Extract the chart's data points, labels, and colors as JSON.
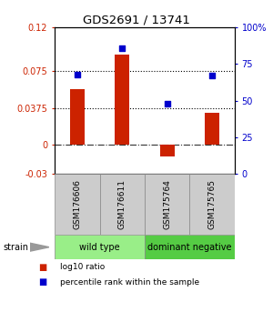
{
  "title": "GDS2691 / 13741",
  "samples": [
    "GSM176606",
    "GSM176611",
    "GSM175764",
    "GSM175765"
  ],
  "log10_ratio": [
    0.057,
    0.092,
    -0.012,
    0.033
  ],
  "percentile_rank": [
    0.68,
    0.86,
    0.48,
    0.67
  ],
  "bar_color": "#cc2200",
  "dot_color": "#0000cc",
  "ylim_left": [
    -0.03,
    0.12
  ],
  "ylim_right": [
    0,
    1.0
  ],
  "yticks_left": [
    -0.03,
    0,
    0.0375,
    0.075,
    0.12
  ],
  "ytick_labels_left": [
    "-0.03",
    "0",
    "0.0375",
    "0.075",
    "0.12"
  ],
  "yticks_right": [
    0,
    0.25,
    0.5,
    0.75,
    1.0
  ],
  "ytick_labels_right": [
    "0",
    "25",
    "50",
    "75",
    "100%"
  ],
  "hlines": [
    0.0375,
    0.075
  ],
  "groups": [
    {
      "label": "wild type",
      "samples": [
        0,
        1
      ],
      "color": "#99ee88"
    },
    {
      "label": "dominant negative",
      "samples": [
        2,
        3
      ],
      "color": "#55cc44"
    }
  ],
  "strain_label": "strain",
  "legend_items": [
    {
      "color": "#cc2200",
      "label": "log10 ratio"
    },
    {
      "color": "#0000cc",
      "label": "percentile rank within the sample"
    }
  ],
  "background_color": "#ffffff",
  "sample_box_color": "#cccccc",
  "sample_box_edge": "#888888"
}
